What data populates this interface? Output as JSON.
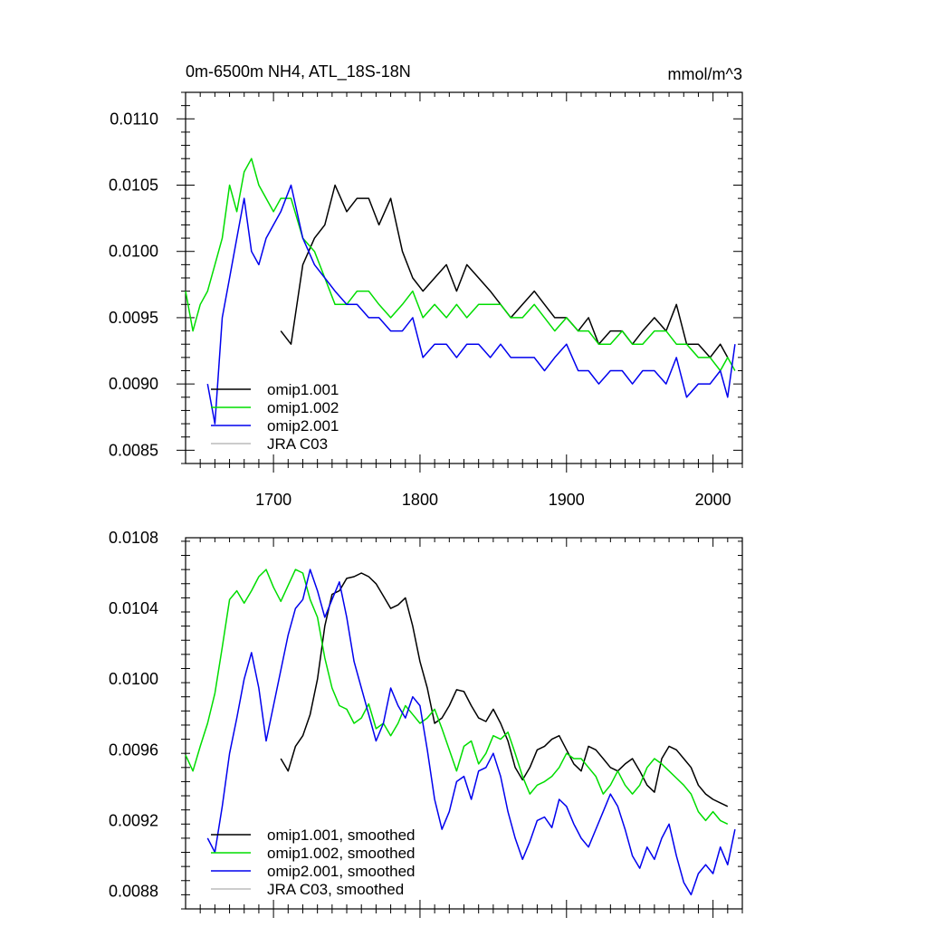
{
  "chart_data": [
    {
      "type": "line",
      "title": "0m-6500m NH4, ATL_18S-18N",
      "units": "mmol/m^3",
      "xlim": [
        1640,
        2020
      ],
      "ylim": [
        0.0084,
        0.0112
      ],
      "x_ticks": [
        1700,
        1800,
        1900,
        2000
      ],
      "x_tick_labels": [
        "1700",
        "1800",
        "1900",
        "2000"
      ],
      "y_ticks": [
        0.0085,
        0.009,
        0.0095,
        0.01,
        0.0105,
        0.011
      ],
      "y_tick_labels": [
        "0.0085",
        "0.0090",
        "0.0095",
        "0.0100",
        "0.0105",
        "0.0110"
      ],
      "legend_position": "bottom-left",
      "series": [
        {
          "name": "omip1.001",
          "color": "#000000",
          "x": [
            1705,
            1712,
            1720,
            1728,
            1735,
            1742,
            1750,
            1757,
            1765,
            1772,
            1780,
            1788,
            1795,
            1802,
            1810,
            1818,
            1825,
            1832,
            1840,
            1848,
            1855,
            1862,
            1870,
            1878,
            1885,
            1892,
            1900,
            1908,
            1915,
            1922,
            1930,
            1938,
            1945,
            1952,
            1960,
            1968,
            1975,
            1982,
            1990,
            1998,
            2005,
            2010
          ],
          "y": [
            0.0094,
            0.0093,
            0.0099,
            0.0101,
            0.0102,
            0.0105,
            0.0103,
            0.0104,
            0.0104,
            0.0102,
            0.0104,
            0.01,
            0.0098,
            0.0097,
            0.0098,
            0.0099,
            0.0097,
            0.0099,
            0.0098,
            0.0097,
            0.0096,
            0.0095,
            0.0096,
            0.0097,
            0.0096,
            0.0095,
            0.0095,
            0.0094,
            0.0095,
            0.0093,
            0.0094,
            0.0094,
            0.0093,
            0.0094,
            0.0095,
            0.0094,
            0.0096,
            0.0093,
            0.0093,
            0.0092,
            0.0093,
            0.0092
          ]
        },
        {
          "name": "omip1.002",
          "color": "#00dd00",
          "x": [
            1640,
            1645,
            1650,
            1655,
            1660,
            1665,
            1670,
            1675,
            1680,
            1685,
            1690,
            1695,
            1700,
            1705,
            1712,
            1720,
            1728,
            1735,
            1742,
            1750,
            1757,
            1765,
            1772,
            1780,
            1788,
            1795,
            1802,
            1810,
            1818,
            1825,
            1832,
            1840,
            1848,
            1855,
            1862,
            1870,
            1878,
            1885,
            1892,
            1900,
            1908,
            1915,
            1922,
            1930,
            1938,
            1945,
            1952,
            1960,
            1968,
            1975,
            1982,
            1990,
            1998,
            2005,
            2010,
            2015
          ],
          "y": [
            0.0097,
            0.0094,
            0.0096,
            0.0097,
            0.0099,
            0.0101,
            0.0105,
            0.0103,
            0.0106,
            0.0107,
            0.0105,
            0.0104,
            0.0103,
            0.0104,
            0.0104,
            0.0101,
            0.01,
            0.0098,
            0.0096,
            0.0096,
            0.0097,
            0.0097,
            0.0096,
            0.0095,
            0.0096,
            0.0097,
            0.0095,
            0.0096,
            0.0095,
            0.0096,
            0.0095,
            0.0096,
            0.0096,
            0.0096,
            0.0095,
            0.0095,
            0.0096,
            0.0095,
            0.0094,
            0.0095,
            0.0094,
            0.0094,
            0.0093,
            0.0093,
            0.0094,
            0.0093,
            0.0093,
            0.0094,
            0.0094,
            0.0093,
            0.0093,
            0.0092,
            0.0092,
            0.0091,
            0.0092,
            0.0091
          ]
        },
        {
          "name": "omip2.001",
          "color": "#0000ee",
          "x": [
            1655,
            1660,
            1665,
            1670,
            1675,
            1680,
            1685,
            1690,
            1695,
            1700,
            1705,
            1712,
            1720,
            1728,
            1735,
            1742,
            1750,
            1757,
            1765,
            1772,
            1780,
            1788,
            1795,
            1802,
            1810,
            1818,
            1825,
            1832,
            1840,
            1848,
            1855,
            1862,
            1870,
            1878,
            1885,
            1892,
            1900,
            1908,
            1915,
            1922,
            1930,
            1938,
            1945,
            1952,
            1960,
            1968,
            1975,
            1982,
            1990,
            1998,
            2005,
            2010,
            2015
          ],
          "y": [
            0.009,
            0.0087,
            0.0095,
            0.0098,
            0.0101,
            0.0104,
            0.01,
            0.0099,
            0.0101,
            0.0102,
            0.0103,
            0.0105,
            0.0101,
            0.0099,
            0.0098,
            0.0097,
            0.0096,
            0.0096,
            0.0095,
            0.0095,
            0.0094,
            0.0094,
            0.0095,
            0.0092,
            0.0093,
            0.0093,
            0.0092,
            0.0093,
            0.0093,
            0.0092,
            0.0093,
            0.0092,
            0.0092,
            0.0092,
            0.0091,
            0.0092,
            0.0093,
            0.0091,
            0.0091,
            0.009,
            0.0091,
            0.0091,
            0.009,
            0.0091,
            0.0091,
            0.009,
            0.0092,
            0.0089,
            0.009,
            0.009,
            0.0091,
            0.0089,
            0.0093
          ]
        },
        {
          "name": "JRA C03",
          "color": "#bbbbbb",
          "x": [],
          "y": []
        }
      ]
    },
    {
      "type": "line",
      "xlim": [
        1640,
        2020
      ],
      "ylim": [
        0.0087,
        0.0108
      ],
      "x_ticks": [
        1700,
        1800,
        1900,
        2000
      ],
      "y_ticks": [
        0.0088,
        0.0092,
        0.0096,
        0.01,
        0.0104,
        0.0108
      ],
      "y_tick_labels": [
        "0.0088",
        "0.0092",
        "0.0096",
        "0.0100",
        "0.0104",
        "0.0108"
      ],
      "legend_position": "bottom-left",
      "series": [
        {
          "name": "omip1.001, smoothed",
          "color": "#000000",
          "x": [
            1705,
            1710,
            1715,
            1720,
            1725,
            1730,
            1735,
            1740,
            1745,
            1750,
            1755,
            1760,
            1765,
            1770,
            1775,
            1780,
            1785,
            1790,
            1795,
            1800,
            1805,
            1810,
            1815,
            1820,
            1825,
            1830,
            1835,
            1840,
            1845,
            1850,
            1855,
            1860,
            1865,
            1870,
            1875,
            1880,
            1885,
            1890,
            1895,
            1900,
            1905,
            1910,
            1915,
            1920,
            1925,
            1930,
            1935,
            1940,
            1945,
            1950,
            1955,
            1960,
            1965,
            1970,
            1975,
            1980,
            1985,
            1990,
            1995,
            2000,
            2005,
            2010
          ],
          "y": [
            0.00955,
            0.00948,
            0.00962,
            0.00968,
            0.0098,
            0.01,
            0.0103,
            0.01048,
            0.0105,
            0.01057,
            0.01058,
            0.0106,
            0.01058,
            0.01054,
            0.01047,
            0.0104,
            0.01042,
            0.01046,
            0.0103,
            0.0101,
            0.00995,
            0.00975,
            0.00978,
            0.00985,
            0.00994,
            0.00993,
            0.00985,
            0.00978,
            0.00976,
            0.00983,
            0.00975,
            0.00965,
            0.0095,
            0.00943,
            0.0095,
            0.0096,
            0.00962,
            0.00966,
            0.00968,
            0.0096,
            0.00952,
            0.00948,
            0.00962,
            0.0096,
            0.00955,
            0.0095,
            0.00948,
            0.00952,
            0.00955,
            0.00948,
            0.0094,
            0.00936,
            0.00955,
            0.00962,
            0.0096,
            0.00955,
            0.0095,
            0.0094,
            0.00935,
            0.00932,
            0.0093,
            0.00928
          ]
        },
        {
          "name": "omip1.002, smoothed",
          "color": "#00dd00",
          "x": [
            1640,
            1645,
            1650,
            1655,
            1660,
            1665,
            1670,
            1675,
            1680,
            1685,
            1690,
            1695,
            1700,
            1705,
            1710,
            1715,
            1720,
            1725,
            1730,
            1735,
            1740,
            1745,
            1750,
            1755,
            1760,
            1765,
            1770,
            1775,
            1780,
            1785,
            1790,
            1795,
            1800,
            1805,
            1810,
            1815,
            1820,
            1825,
            1830,
            1835,
            1840,
            1845,
            1850,
            1855,
            1860,
            1865,
            1870,
            1875,
            1880,
            1885,
            1890,
            1895,
            1900,
            1905,
            1910,
            1915,
            1920,
            1925,
            1930,
            1935,
            1940,
            1945,
            1950,
            1955,
            1960,
            1965,
            1970,
            1975,
            1980,
            1985,
            1990,
            1995,
            2000,
            2005,
            2010
          ],
          "y": [
            0.00957,
            0.00948,
            0.00962,
            0.00975,
            0.00992,
            0.01018,
            0.01045,
            0.0105,
            0.01043,
            0.0105,
            0.01058,
            0.01062,
            0.01052,
            0.01044,
            0.01053,
            0.01062,
            0.0106,
            0.01045,
            0.01035,
            0.01012,
            0.00995,
            0.00985,
            0.00983,
            0.00975,
            0.00978,
            0.00986,
            0.00972,
            0.00975,
            0.00968,
            0.00975,
            0.00985,
            0.0098,
            0.00975,
            0.00978,
            0.00983,
            0.00972,
            0.0096,
            0.00948,
            0.00962,
            0.00965,
            0.00952,
            0.00958,
            0.00968,
            0.00966,
            0.0097,
            0.00958,
            0.00945,
            0.00935,
            0.0094,
            0.00942,
            0.00945,
            0.0095,
            0.00958,
            0.00955,
            0.00955,
            0.0095,
            0.00945,
            0.00935,
            0.0094,
            0.00948,
            0.0094,
            0.00935,
            0.0094,
            0.0095,
            0.00955,
            0.00952,
            0.00948,
            0.00944,
            0.0094,
            0.00935,
            0.00925,
            0.0092,
            0.00925,
            0.0092,
            0.00918
          ]
        },
        {
          "name": "omip2.001, smoothed",
          "color": "#0000ee",
          "x": [
            1655,
            1660,
            1665,
            1670,
            1675,
            1680,
            1685,
            1690,
            1695,
            1700,
            1705,
            1710,
            1715,
            1720,
            1725,
            1730,
            1735,
            1740,
            1745,
            1750,
            1755,
            1760,
            1765,
            1770,
            1775,
            1780,
            1785,
            1790,
            1795,
            1800,
            1805,
            1810,
            1815,
            1820,
            1825,
            1830,
            1835,
            1840,
            1845,
            1850,
            1855,
            1860,
            1865,
            1870,
            1875,
            1880,
            1885,
            1890,
            1895,
            1900,
            1905,
            1910,
            1915,
            1920,
            1925,
            1930,
            1935,
            1940,
            1945,
            1950,
            1955,
            1960,
            1965,
            1970,
            1975,
            1980,
            1985,
            1990,
            1995,
            2000,
            2005,
            2010,
            2015
          ],
          "y": [
            0.0091,
            0.00902,
            0.00928,
            0.00958,
            0.00978,
            0.01,
            0.01015,
            0.00995,
            0.00965,
            0.00985,
            0.01005,
            0.01025,
            0.0104,
            0.01045,
            0.01062,
            0.0105,
            0.01035,
            0.01045,
            0.01055,
            0.01035,
            0.0101,
            0.00995,
            0.0098,
            0.00965,
            0.00975,
            0.00995,
            0.00985,
            0.00978,
            0.0099,
            0.00985,
            0.0096,
            0.00932,
            0.00915,
            0.00925,
            0.00942,
            0.00945,
            0.00932,
            0.00948,
            0.0095,
            0.00958,
            0.00945,
            0.00925,
            0.0091,
            0.00898,
            0.00908,
            0.0092,
            0.00922,
            0.00916,
            0.00932,
            0.00928,
            0.00918,
            0.0091,
            0.00905,
            0.00915,
            0.00925,
            0.00935,
            0.00928,
            0.00915,
            0.009,
            0.00893,
            0.00905,
            0.00898,
            0.0091,
            0.00918,
            0.009,
            0.00885,
            0.00878,
            0.0089,
            0.00895,
            0.0089,
            0.00905,
            0.00895,
            0.00915
          ]
        },
        {
          "name": "JRA C03, smoothed",
          "color": "#bbbbbb",
          "x": [],
          "y": []
        }
      ]
    }
  ]
}
